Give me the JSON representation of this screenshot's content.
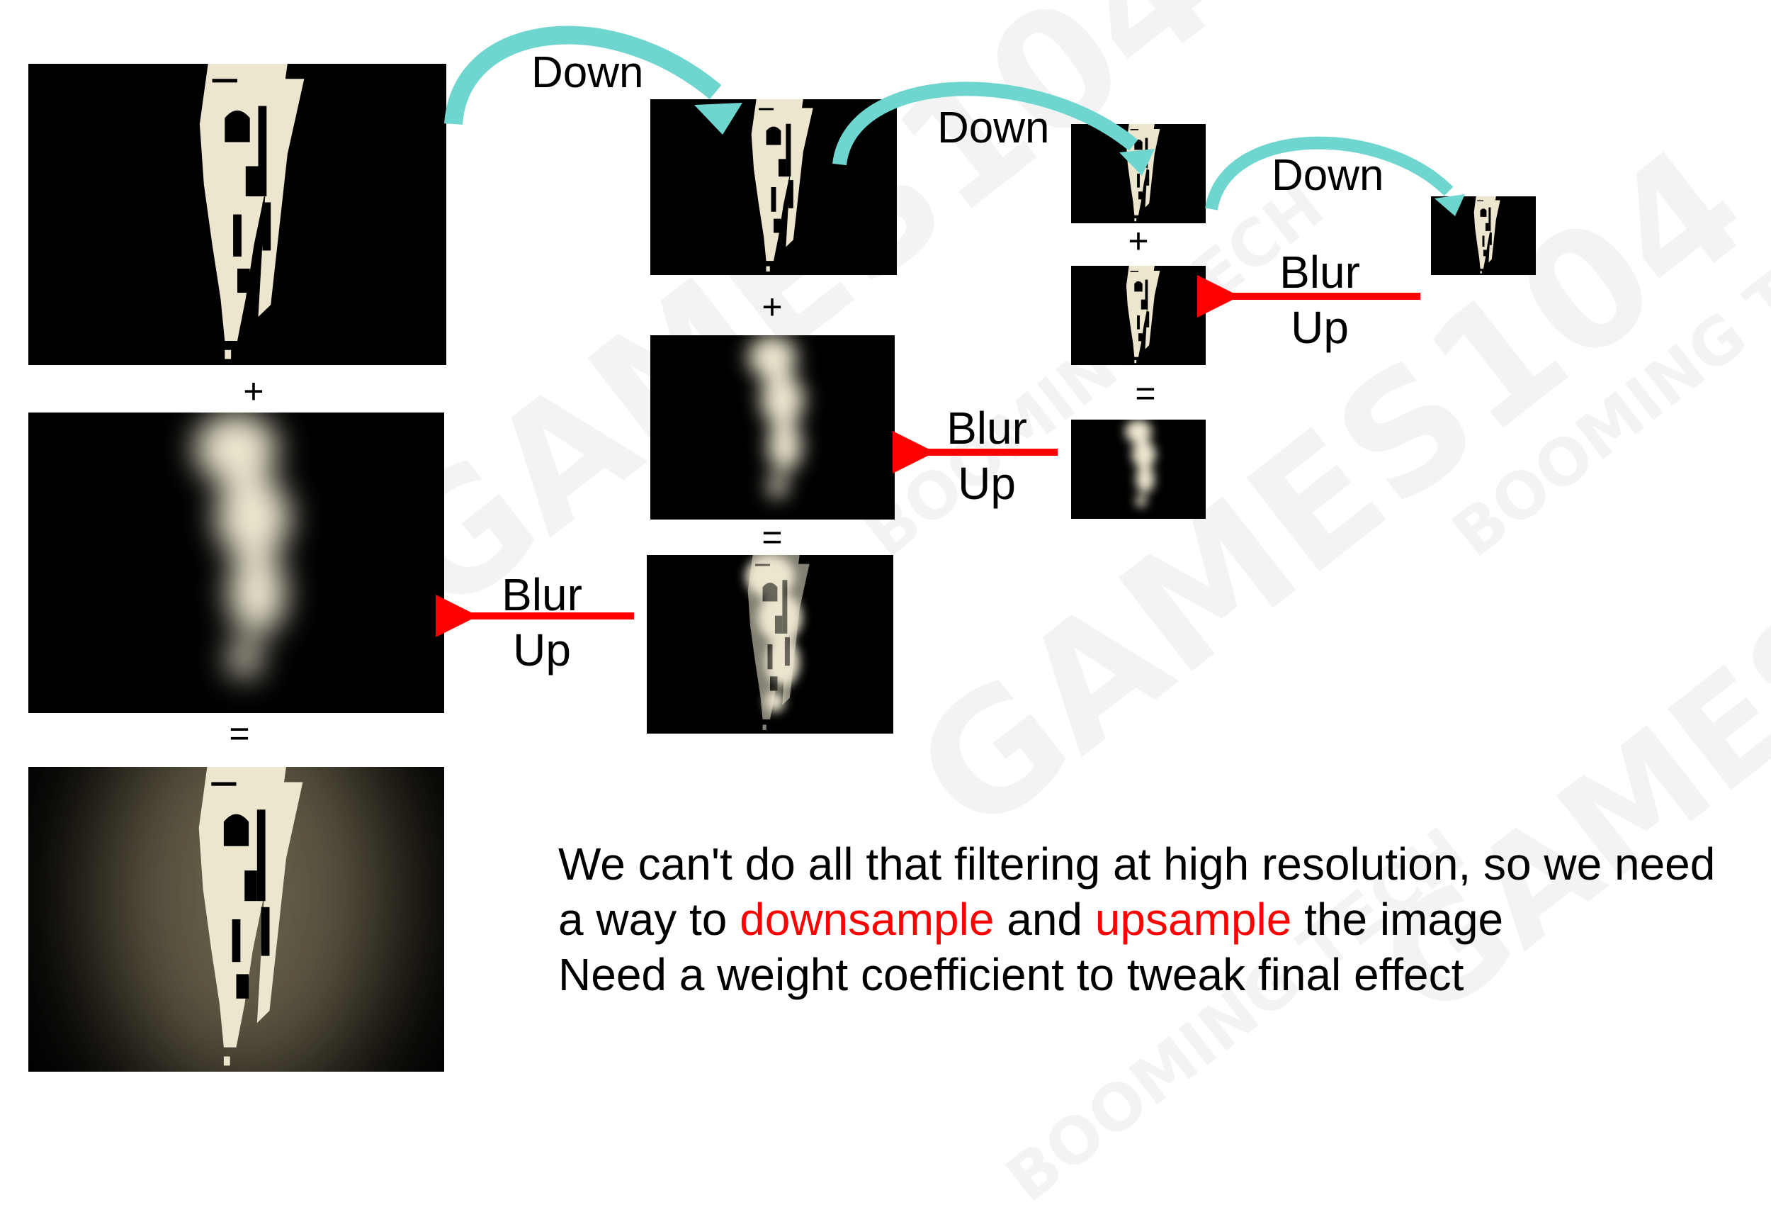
{
  "watermarks": [
    "GAMES104",
    "GAMES104",
    "GAMES104",
    "BOOMING TECH",
    "BOOMING TECH",
    "BOOMING TECH"
  ],
  "labels": {
    "down": "Down",
    "blur": "Blur",
    "up": "Up",
    "plus": "+",
    "equals": "="
  },
  "caption": {
    "line1": "We can't do all that filtering at high resolution, so we need",
    "line2_a": "a way to ",
    "line2_b": "downsample",
    "line2_c": " and ",
    "line2_d": "upsample",
    "line2_e": " the image",
    "line3": "Need a weight coefficient to tweak final effect"
  },
  "colors": {
    "down_arrow": "#6fd6cf",
    "blur_up_arrow": "#ff0000",
    "highlight_text": "#ff0000",
    "bright": "#ece6cf",
    "image_bg": "#000000"
  }
}
